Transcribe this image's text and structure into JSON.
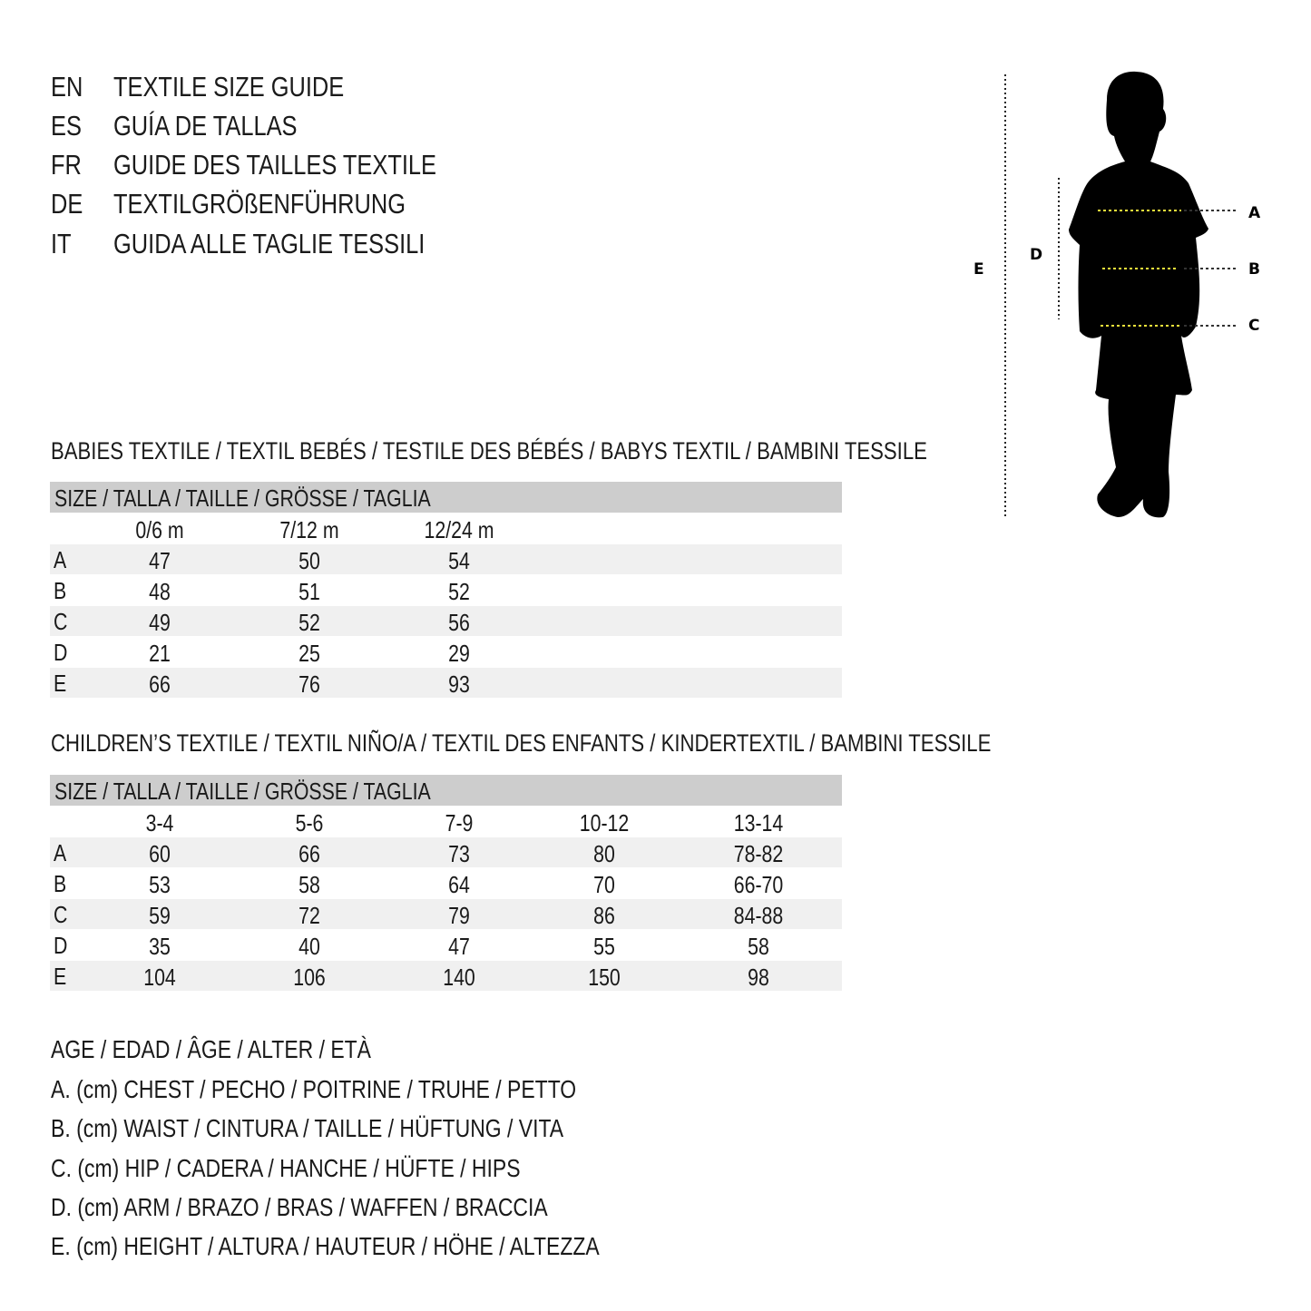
{
  "titles": [
    {
      "lang": "EN",
      "text": "TEXTILE SIZE GUIDE"
    },
    {
      "lang": "ES",
      "text": "GUÍA DE TALLAS"
    },
    {
      "lang": "FR",
      "text": "GUIDE DES TAILLES TEXTILE"
    },
    {
      "lang": "DE",
      "text": "TEXTILGRÖßENFÜHRUNG"
    },
    {
      "lang": "IT",
      "text": "GUIDA ALLE TAGLIE TESSILI"
    }
  ],
  "figure": {
    "labels": {
      "a": "A",
      "b": "B",
      "c": "C",
      "d": "D",
      "e": "E"
    },
    "measure_line_color": "#f2e23a"
  },
  "babies": {
    "heading": "BABIES TEXTILE / TEXTIL BEBÉS / TESTILE DES BÉBÉS / BABYS TEXTIL / BAMBINI TESSILE",
    "size_header": "SIZE / TALLA / TAILLE / GRÖSSE / TAGLIA",
    "columns": [
      "0/6 m",
      "7/12 m",
      "12/24 m"
    ],
    "rows": [
      {
        "label": "A",
        "values": [
          "47",
          "50",
          "54"
        ]
      },
      {
        "label": "B",
        "values": [
          "48",
          "51",
          "52"
        ]
      },
      {
        "label": "C",
        "values": [
          "49",
          "52",
          "56"
        ]
      },
      {
        "label": "D",
        "values": [
          "21",
          "25",
          "29"
        ]
      },
      {
        "label": "E",
        "values": [
          "66",
          "76",
          "93"
        ]
      }
    ]
  },
  "children": {
    "heading": "CHILDREN’S TEXTILE / TEXTIL NIÑO/A / TEXTIL DES ENFANTS / KINDERTEXTIL / BAMBINI TESSILE",
    "size_header": "SIZE / TALLA / TAILLE / GRÖSSE / TAGLIA",
    "columns": [
      "3-4",
      "5-6",
      "7-9",
      "10-12",
      "13-14"
    ],
    "rows": [
      {
        "label": "A",
        "values": [
          "60",
          "66",
          "73",
          "80",
          "78-82"
        ]
      },
      {
        "label": "B",
        "values": [
          "53",
          "58",
          "64",
          "70",
          "66-70"
        ]
      },
      {
        "label": "C",
        "values": [
          "59",
          "72",
          "79",
          "86",
          "84-88"
        ]
      },
      {
        "label": "D",
        "values": [
          "35",
          "40",
          "47",
          "55",
          "58"
        ]
      },
      {
        "label": "E",
        "values": [
          "104",
          "106",
          "140",
          "150",
          "98"
        ]
      }
    ]
  },
  "legend": [
    "AGE / EDAD / ÂGE / ALTER / ETÀ",
    "A. (cm) CHEST / PECHO / POITRINE / TRUHE / PETTO",
    "B. (cm) WAIST / CINTURA / TAILLE / HÜFTUNG / VITA",
    "C. (cm) HIP / CADERA / HANCHE / HÜFTE / HIPS",
    "D. (cm) ARM / BRAZO / BRAS / WAFFEN / BRACCIA",
    "E. (cm) HEIGHT / ALTURA / HAUTEUR / HÖHE / ALTEZZA"
  ]
}
